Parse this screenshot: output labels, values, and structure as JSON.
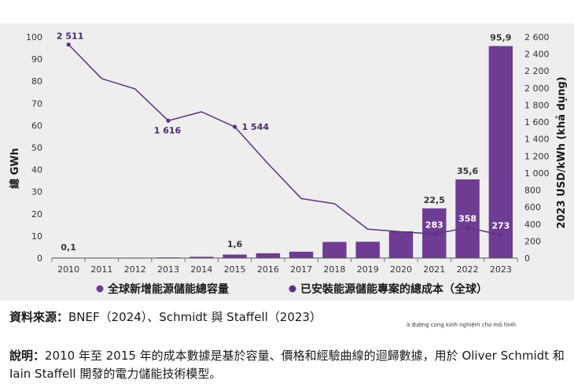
{
  "chart_data": {
    "type": "bar+line",
    "categories": [
      "2010",
      "2011",
      "2012",
      "2013",
      "2014",
      "2015",
      "2016",
      "2017",
      "2018",
      "2019",
      "2020",
      "2021",
      "2022",
      "2023"
    ],
    "left_axis": {
      "label": "總 GWh",
      "ylim": [
        0,
        100
      ],
      "ticks": [
        "0",
        "10",
        "20",
        "30",
        "40",
        "50",
        "60",
        "70",
        "80",
        "90",
        "100"
      ]
    },
    "right_axis": {
      "label": "2023 USD/kWh (khả dụng)",
      "ylim": [
        0,
        2600
      ],
      "ticks": [
        "0",
        "200",
        "400",
        "600",
        "800",
        "1 000",
        "1 200",
        "1 400",
        "1 600",
        "1 800",
        "2 000",
        "2 200",
        "2 400",
        "2 600"
      ]
    },
    "series": [
      {
        "name": "全球新增能源儲能總容量",
        "type": "bar",
        "axis": "left",
        "color": "#6e3d93",
        "values": [
          0.1,
          0.1,
          0.2,
          0.3,
          0.6,
          1.6,
          2.2,
          2.9,
          7.3,
          7.4,
          12.1,
          22.5,
          35.6,
          95.9
        ],
        "labels": {
          "0": "0,1",
          "5": "1,6",
          "11": "22,5",
          "12": "35,6",
          "13": "95,9"
        }
      },
      {
        "name": "已安裝能源儲能專案的總成本（全球）",
        "type": "line",
        "axis": "right",
        "color": "#5b3480",
        "values": [
          2511,
          2110,
          1990,
          1616,
          1720,
          1544,
          1110,
          700,
          640,
          340,
          310,
          283,
          358,
          273
        ],
        "labels": {
          "0": "2 511",
          "3": "1 616",
          "5": "1 544",
          "11": "283",
          "12": "358",
          "13": "273"
        }
      }
    ],
    "grid": false,
    "legend_position": "bottom"
  },
  "source": {
    "label": "資料來源：",
    "text": "BNEF（2024）、Schmidt 與 Staffell（2023）"
  },
  "credit": "à đường cong kinh nghiệm cho mô hình",
  "note": {
    "label": "說明：",
    "text": "2010 年至 2015 年的成本數據是基於容量、價格和經驗曲線的迴歸數據，用於 Oliver Schmidt 和 Iain Staffell 開發的電力儲能技術模型。"
  }
}
